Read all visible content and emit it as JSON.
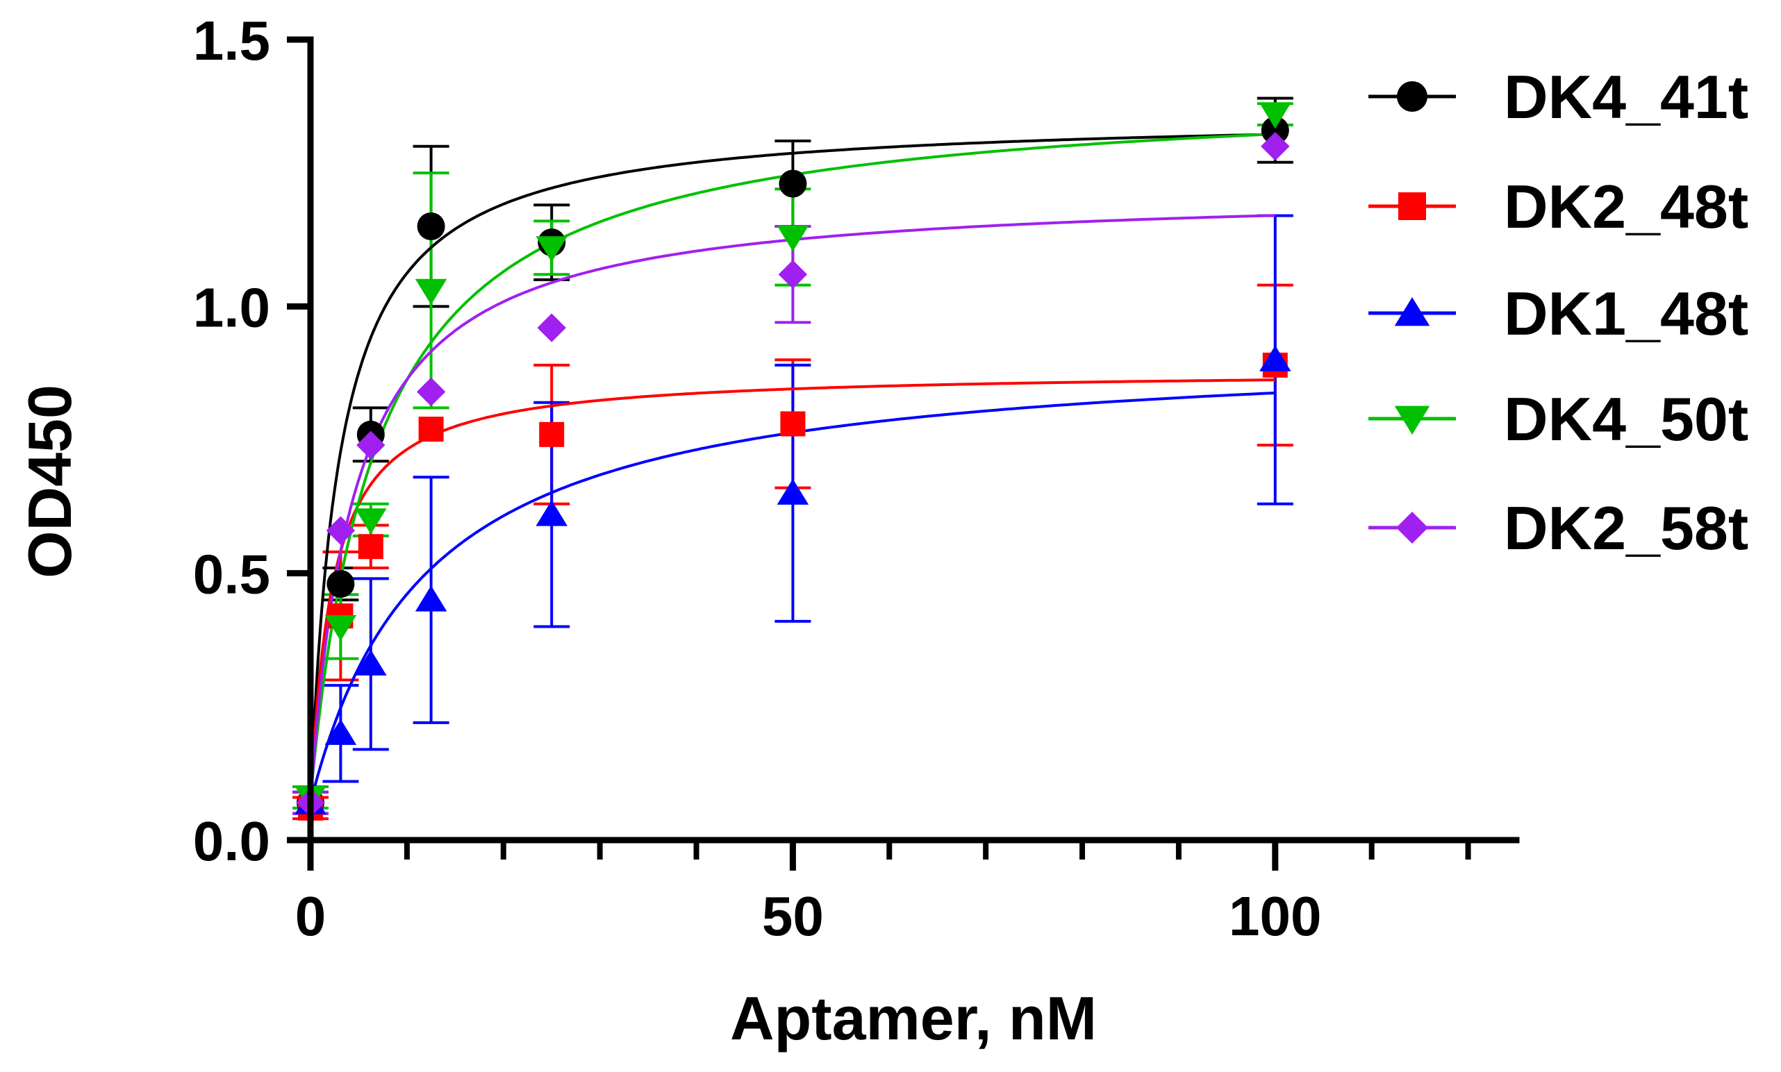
{
  "chart_data": {
    "type": "scatter",
    "xlabel": "Aptamer, nM",
    "ylabel": "OD450",
    "xlim": [
      0,
      125
    ],
    "ylim": [
      0,
      1.5
    ],
    "x_ticks": [
      0,
      50,
      100
    ],
    "x_tick_labels": [
      "0",
      "50",
      "100"
    ],
    "x_minor_step": 10,
    "y_ticks": [
      0.0,
      0.5,
      1.0,
      1.5
    ],
    "y_tick_labels": [
      "0.0",
      "0.5",
      "1.0",
      "1.5"
    ],
    "legend_position": "top-right",
    "fit": "one-site specific binding (Bmax·x/(Kd+x))",
    "x": [
      0,
      3.125,
      6.25,
      12.5,
      25,
      50,
      100
    ],
    "series": [
      {
        "name": "DK4_41t",
        "color": "#000000",
        "marker": "circle",
        "values": [
          0.07,
          0.48,
          0.76,
          1.15,
          1.12,
          1.23,
          1.33
        ],
        "errors": [
          0.02,
          0.03,
          0.05,
          0.15,
          0.07,
          0.08,
          0.06
        ],
        "fit_bmax": 1.36,
        "fit_kd": 3.0
      },
      {
        "name": "DK2_48t",
        "color": "#ff0000",
        "marker": "square",
        "values": [
          0.06,
          0.42,
          0.55,
          0.77,
          0.76,
          0.78,
          0.89
        ],
        "errors": [
          0.02,
          0.12,
          0.04,
          0.0,
          0.13,
          0.12,
          0.15
        ],
        "fit_bmax": 0.88,
        "fit_kd": 2.2
      },
      {
        "name": "DK1_48t",
        "color": "#0000ff",
        "marker": "triangle-up",
        "values": [
          0.07,
          0.2,
          0.33,
          0.45,
          0.61,
          0.65,
          0.9
        ],
        "errors": [
          0.02,
          0.09,
          0.16,
          0.23,
          0.21,
          0.24,
          0.27
        ],
        "fit_bmax": 0.93,
        "fit_kd": 12.0
      },
      {
        "name": "DK4_50t",
        "color": "#00c000",
        "marker": "triangle-down",
        "values": [
          0.08,
          0.4,
          0.6,
          1.03,
          1.11,
          1.13,
          1.36
        ],
        "errors": [
          0.02,
          0.06,
          0.03,
          0.22,
          0.05,
          0.09,
          0.02
        ],
        "fit_bmax": 1.41,
        "fit_kd": 7.0
      },
      {
        "name": "DK2_58t",
        "color": "#a020f0",
        "marker": "diamond",
        "values": [
          0.07,
          0.58,
          0.74,
          0.84,
          0.96,
          1.06,
          1.3
        ],
        "errors": [
          0.02,
          0.0,
          0.0,
          0.0,
          0.0,
          0.09,
          0.0
        ],
        "fit_bmax": 1.22,
        "fit_kd": 4.5
      }
    ]
  }
}
